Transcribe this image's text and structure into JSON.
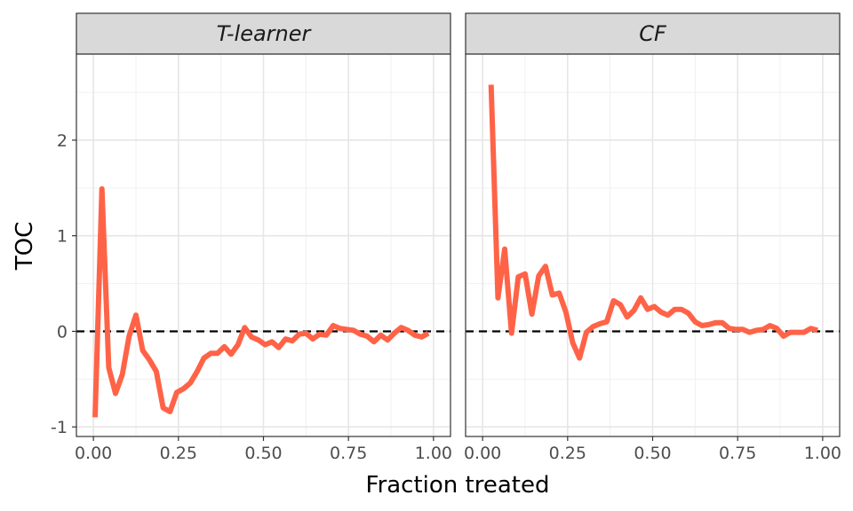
{
  "chart_data": {
    "type": "line",
    "xlabel": "Fraction treated",
    "ylabel": "TOC",
    "xlim": [
      -0.05,
      1.05
    ],
    "ylim": [
      -1.1,
      2.9
    ],
    "x_ticks": [
      0,
      0.25,
      0.5,
      0.75,
      1
    ],
    "x_tick_labels": [
      "0.00",
      "0.25",
      "0.50",
      "0.75",
      "1.00"
    ],
    "y_ticks": [
      -1,
      0,
      1,
      2
    ],
    "y_tick_labels": [
      "-1",
      "0",
      "1",
      "2"
    ],
    "grid": true,
    "reference_line": {
      "y": 0,
      "style": "dashed"
    },
    "line_color": "#ff6347",
    "panels": [
      {
        "label": "T-learner",
        "x": [
          0.005,
          0.025,
          0.045,
          0.065,
          0.085,
          0.105,
          0.125,
          0.145,
          0.165,
          0.185,
          0.205,
          0.225,
          0.245,
          0.265,
          0.285,
          0.305,
          0.325,
          0.345,
          0.365,
          0.385,
          0.405,
          0.425,
          0.445,
          0.465,
          0.485,
          0.505,
          0.525,
          0.545,
          0.565,
          0.585,
          0.605,
          0.625,
          0.645,
          0.665,
          0.685,
          0.705,
          0.725,
          0.745,
          0.765,
          0.785,
          0.805,
          0.825,
          0.845,
          0.865,
          0.885,
          0.905,
          0.925,
          0.945,
          0.965,
          0.985
        ],
        "y": [
          -0.9,
          1.49,
          -0.38,
          -0.65,
          -0.45,
          -0.05,
          0.17,
          -0.2,
          -0.3,
          -0.42,
          -0.8,
          -0.84,
          -0.64,
          -0.6,
          -0.54,
          -0.42,
          -0.28,
          -0.23,
          -0.23,
          -0.16,
          -0.24,
          -0.14,
          0.04,
          -0.06,
          -0.09,
          -0.14,
          -0.11,
          -0.17,
          -0.08,
          -0.1,
          -0.03,
          -0.02,
          -0.08,
          -0.03,
          -0.04,
          0.06,
          0.03,
          0.02,
          0.01,
          -0.03,
          -0.05,
          -0.11,
          -0.04,
          -0.09,
          -0.02,
          0.04,
          0.01,
          -0.04,
          -0.06,
          -0.02
        ]
      },
      {
        "label": "CF",
        "x": [
          0.025,
          0.045,
          0.065,
          0.085,
          0.105,
          0.125,
          0.145,
          0.165,
          0.185,
          0.205,
          0.225,
          0.245,
          0.265,
          0.285,
          0.305,
          0.325,
          0.345,
          0.365,
          0.385,
          0.405,
          0.425,
          0.445,
          0.465,
          0.485,
          0.505,
          0.525,
          0.545,
          0.565,
          0.585,
          0.605,
          0.625,
          0.645,
          0.665,
          0.685,
          0.705,
          0.725,
          0.745,
          0.765,
          0.785,
          0.805,
          0.825,
          0.845,
          0.865,
          0.885,
          0.905,
          0.925,
          0.945,
          0.965,
          0.985
        ],
        "y": [
          2.58,
          0.35,
          0.86,
          -0.02,
          0.57,
          0.6,
          0.18,
          0.58,
          0.68,
          0.38,
          0.4,
          0.2,
          -0.12,
          -0.28,
          -0.01,
          0.05,
          0.08,
          0.1,
          0.32,
          0.28,
          0.15,
          0.22,
          0.35,
          0.23,
          0.26,
          0.2,
          0.17,
          0.23,
          0.23,
          0.19,
          0.1,
          0.06,
          0.07,
          0.09,
          0.09,
          0.03,
          0.02,
          0.02,
          -0.01,
          0.01,
          0.02,
          0.06,
          0.03,
          -0.05,
          -0.01,
          -0.01,
          -0.01,
          0.03,
          0.01
        ]
      }
    ]
  }
}
